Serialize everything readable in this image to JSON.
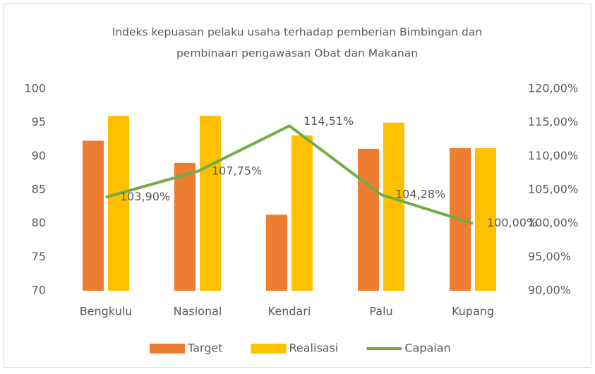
{
  "chart_data": {
    "type": "bar-line",
    "title": [
      "Indeks kepuasan pelaku usaha terhadap pemberian Bimbingan dan",
      "pembinaan pengawasan Obat dan Makanan"
    ],
    "categories": [
      "Bengkulu",
      "Nasional",
      "Kendari",
      "Palu",
      "Kupang"
    ],
    "series": [
      {
        "name": "Target",
        "color": "#ed7d31",
        "values": [
          92.3,
          89,
          81.3,
          91.1,
          91.2
        ]
      },
      {
        "name": "Realisasi",
        "color": "#ffc000",
        "values": [
          96,
          96,
          93.1,
          95,
          91.2
        ]
      },
      {
        "name": "Capaian",
        "color": "#70ad47",
        "axis": "y2",
        "values": [
          103.9,
          107.75,
          114.51,
          104.28,
          100
        ],
        "value_labels": [
          "103,90%",
          "107,75%",
          "114,51%",
          "104,28%",
          "100,00%"
        ]
      }
    ],
    "ylim": [
      70,
      100
    ],
    "yticks": [
      70,
      75,
      80,
      85,
      90,
      95,
      100
    ],
    "y2lim": [
      90,
      120
    ],
    "y2ticks": [
      {
        "value": 90,
        "label": "90,00%"
      },
      {
        "value": 95,
        "label": "95,00%"
      },
      {
        "value": 100,
        "label": "100,00%"
      },
      {
        "value": 105,
        "label": "105,00%"
      },
      {
        "value": 110,
        "label": "110,00%"
      },
      {
        "value": 115,
        "label": "115,00%"
      },
      {
        "value": 120,
        "label": "120,00%"
      }
    ],
    "legend": "bottom"
  }
}
